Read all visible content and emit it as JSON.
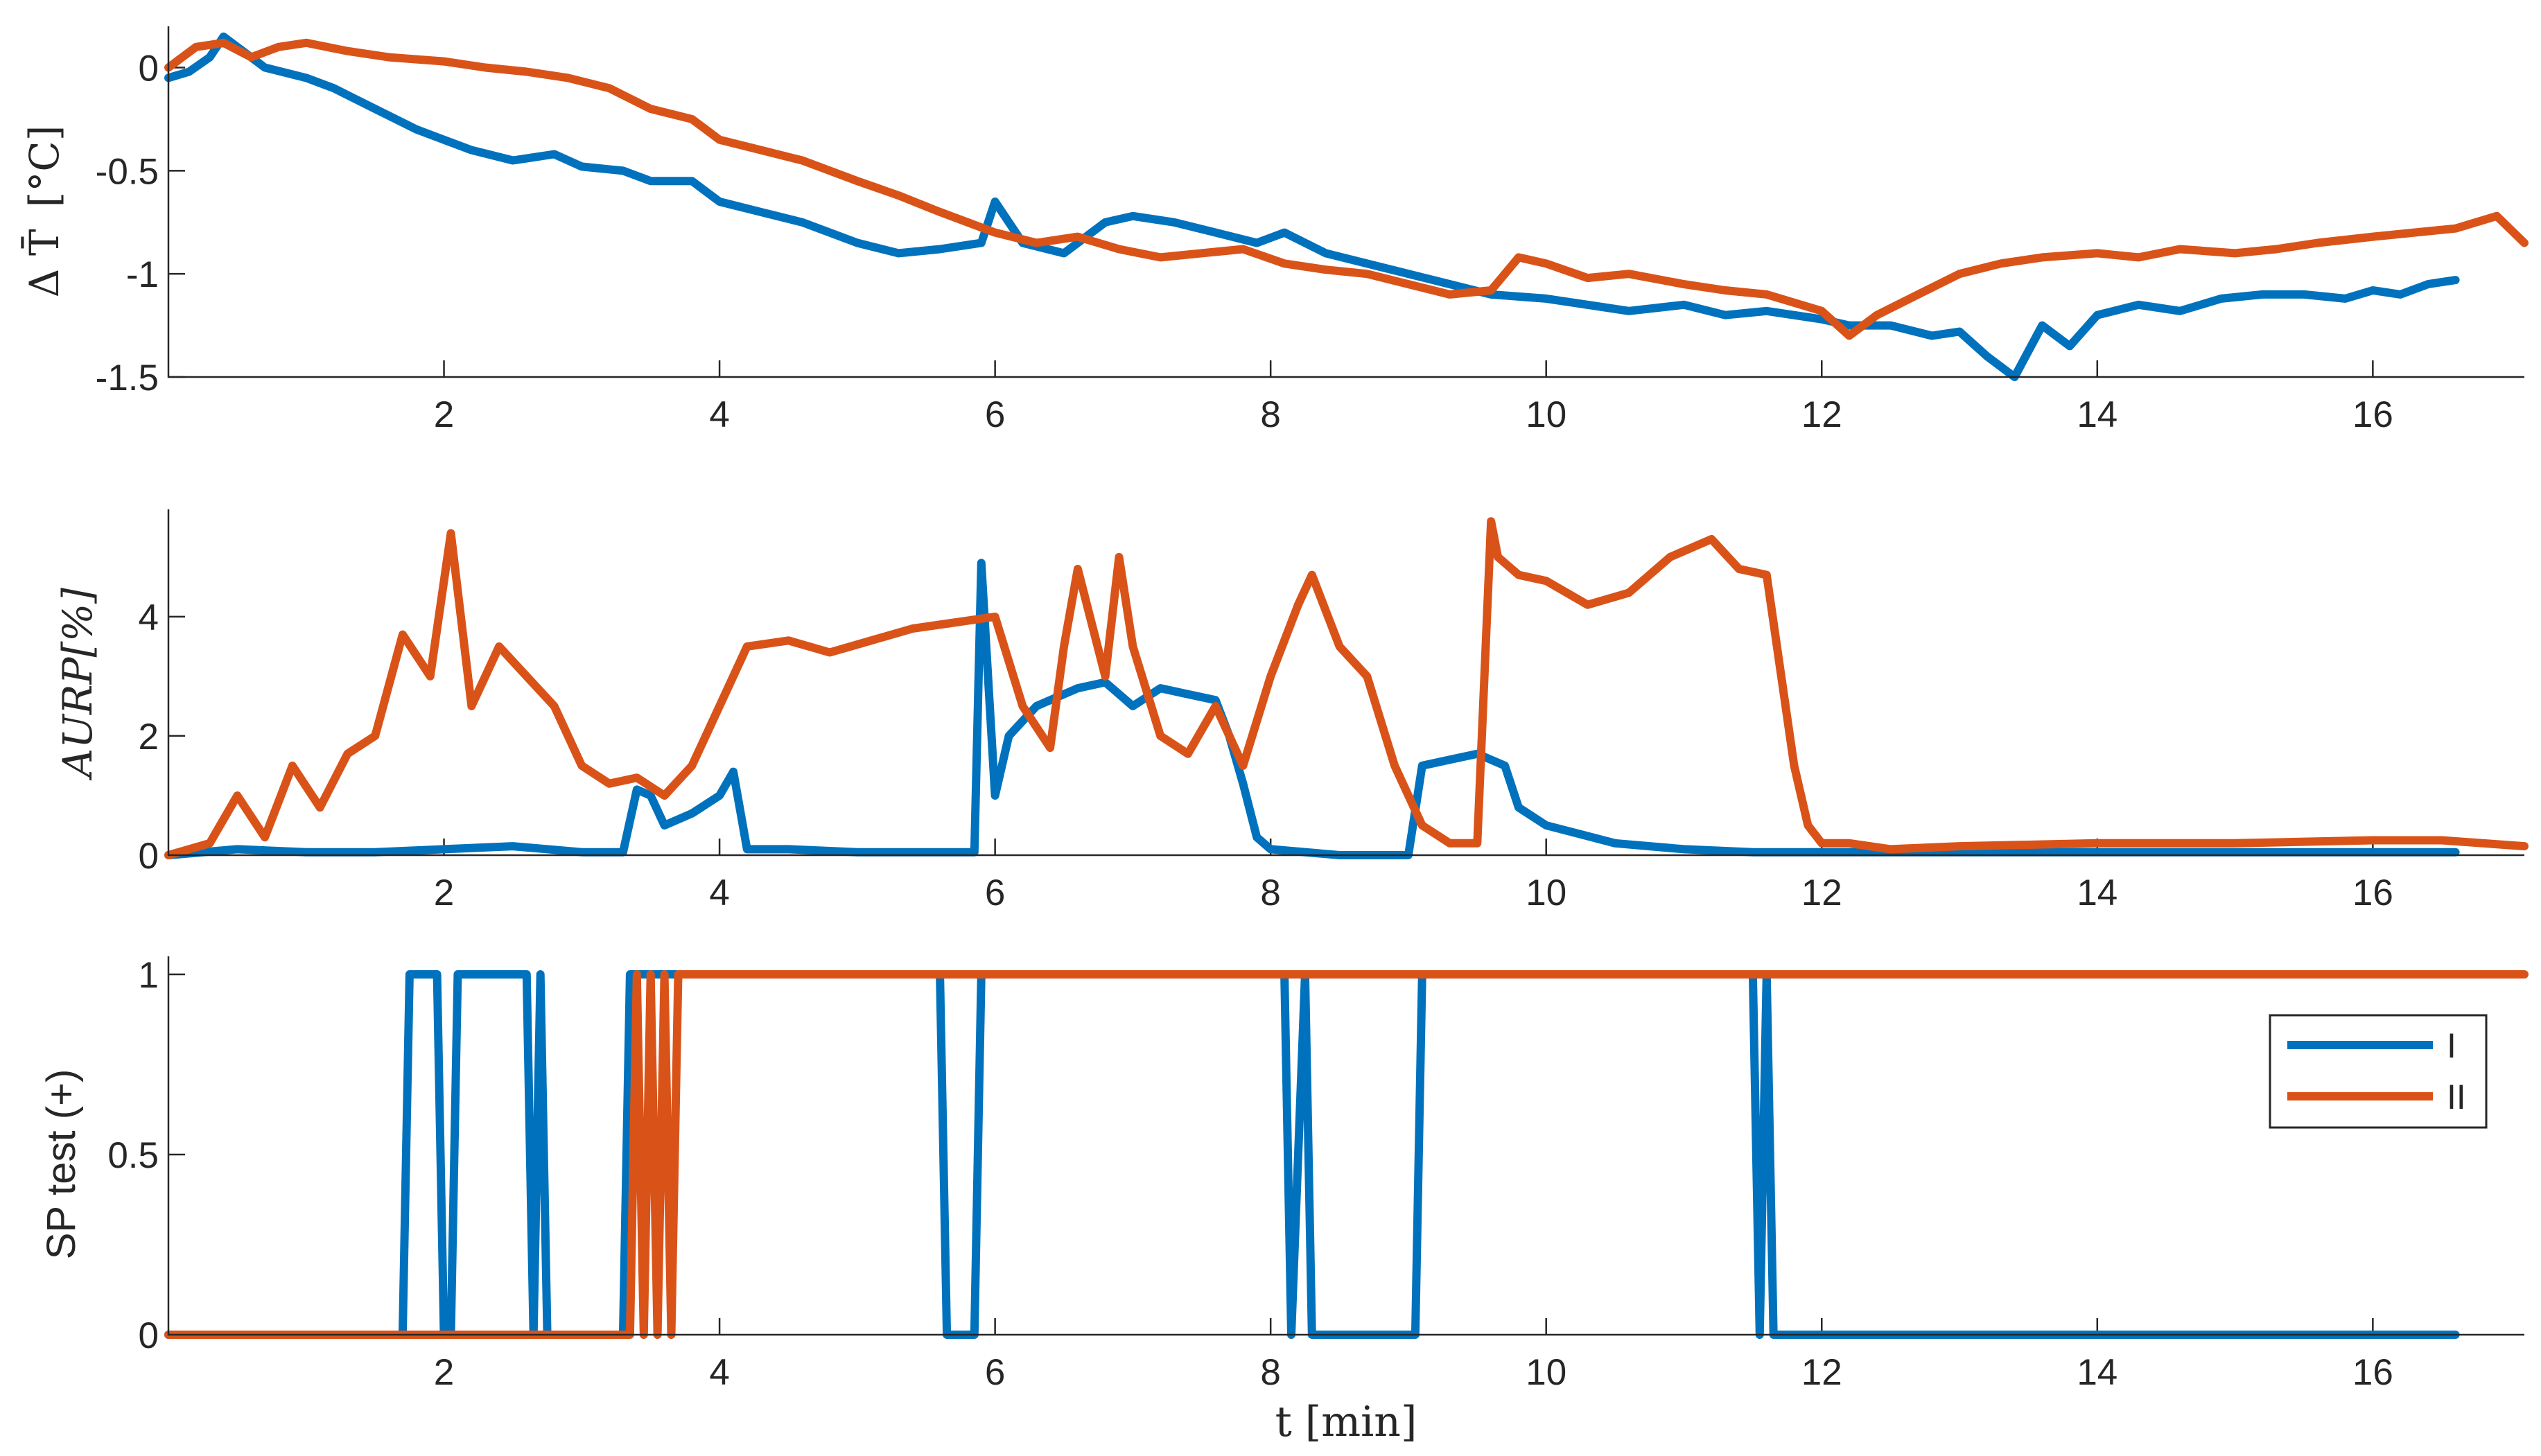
{
  "figure": {
    "xlabel": "t [min]",
    "colors": {
      "series_I": "#0072BD",
      "series_II": "#D95319",
      "axis": "#262626"
    }
  },
  "chart_data": [
    {
      "type": "line",
      "title": "",
      "xlabel": "",
      "ylabel": "Δ T̄ [°C]",
      "ylabel_text": "[°C]",
      "ylabel_symbol": "Δ T̄",
      "xlim": [
        0,
        17.1
      ],
      "ylim": [
        -1.5,
        0.2
      ],
      "xticks": [
        2,
        4,
        6,
        8,
        10,
        12,
        14,
        16
      ],
      "xtick_labels": [
        "2",
        "4",
        "6",
        "8",
        "10",
        "12",
        "14",
        "16"
      ],
      "yticks": [
        -1.5,
        -1,
        -0.5,
        0
      ],
      "ytick_labels": [
        "-1.5",
        "-1",
        "-0.5",
        "0"
      ],
      "series": [
        {
          "name": "I",
          "x": [
            0,
            0.15,
            0.3,
            0.4,
            0.5,
            0.7,
            1.0,
            1.2,
            1.5,
            1.8,
            2.0,
            2.2,
            2.5,
            2.8,
            3.0,
            3.3,
            3.5,
            3.8,
            4.0,
            4.3,
            4.6,
            5.0,
            5.3,
            5.6,
            5.9,
            6.0,
            6.2,
            6.5,
            6.8,
            7.0,
            7.3,
            7.6,
            7.9,
            8.1,
            8.4,
            8.7,
            9.0,
            9.3,
            9.6,
            10.0,
            10.3,
            10.6,
            11.0,
            11.3,
            11.6,
            12.0,
            12.2,
            12.5,
            12.8,
            13.0,
            13.2,
            13.4,
            13.6,
            13.8,
            14.0,
            14.3,
            14.6,
            14.9,
            15.2,
            15.5,
            15.8,
            16.0,
            16.2,
            16.4,
            16.6
          ],
          "values": [
            -0.05,
            -0.02,
            0.05,
            0.15,
            0.1,
            0.0,
            -0.05,
            -0.1,
            -0.2,
            -0.3,
            -0.35,
            -0.4,
            -0.45,
            -0.42,
            -0.48,
            -0.5,
            -0.55,
            -0.55,
            -0.65,
            -0.7,
            -0.75,
            -0.85,
            -0.9,
            -0.88,
            -0.85,
            -0.65,
            -0.85,
            -0.9,
            -0.75,
            -0.72,
            -0.75,
            -0.8,
            -0.85,
            -0.8,
            -0.9,
            -0.95,
            -1.0,
            -1.05,
            -1.1,
            -1.12,
            -1.15,
            -1.18,
            -1.15,
            -1.2,
            -1.18,
            -1.22,
            -1.25,
            -1.25,
            -1.3,
            -1.28,
            -1.4,
            -1.5,
            -1.25,
            -1.35,
            -1.2,
            -1.15,
            -1.18,
            -1.12,
            -1.1,
            -1.1,
            -1.12,
            -1.08,
            -1.1,
            -1.05,
            -1.03
          ]
        },
        {
          "name": "II",
          "x": [
            0,
            0.2,
            0.4,
            0.6,
            0.8,
            1.0,
            1.3,
            1.6,
            2.0,
            2.3,
            2.6,
            2.9,
            3.2,
            3.5,
            3.8,
            4.0,
            4.3,
            4.6,
            5.0,
            5.3,
            5.6,
            6.0,
            6.3,
            6.6,
            6.9,
            7.2,
            7.5,
            7.8,
            8.1,
            8.4,
            8.7,
            9.0,
            9.3,
            9.6,
            9.8,
            10.0,
            10.3,
            10.6,
            11.0,
            11.3,
            11.6,
            12.0,
            12.2,
            12.4,
            12.7,
            13.0,
            13.3,
            13.6,
            14.0,
            14.3,
            14.6,
            15.0,
            15.3,
            15.6,
            16.0,
            16.3,
            16.6,
            16.9,
            17.1
          ],
          "values": [
            0.0,
            0.1,
            0.12,
            0.05,
            0.1,
            0.12,
            0.08,
            0.05,
            0.03,
            0.0,
            -0.02,
            -0.05,
            -0.1,
            -0.2,
            -0.25,
            -0.35,
            -0.4,
            -0.45,
            -0.55,
            -0.62,
            -0.7,
            -0.8,
            -0.85,
            -0.82,
            -0.88,
            -0.92,
            -0.9,
            -0.88,
            -0.95,
            -0.98,
            -1.0,
            -1.05,
            -1.1,
            -1.08,
            -0.92,
            -0.95,
            -1.02,
            -1.0,
            -1.05,
            -1.08,
            -1.1,
            -1.18,
            -1.3,
            -1.2,
            -1.1,
            -1.0,
            -0.95,
            -0.92,
            -0.9,
            -0.92,
            -0.88,
            -0.9,
            -0.88,
            -0.85,
            -0.82,
            -0.8,
            -0.78,
            -0.72,
            -0.85
          ]
        }
      ]
    },
    {
      "type": "line",
      "title": "",
      "xlabel": "",
      "ylabel": "AURP[%]",
      "ylabel_text": "AURP[%]",
      "xlim": [
        0,
        17.1
      ],
      "ylim": [
        0,
        5.8
      ],
      "xticks": [
        2,
        4,
        6,
        8,
        10,
        12,
        14,
        16
      ],
      "xtick_labels": [
        "2",
        "4",
        "6",
        "8",
        "10",
        "12",
        "14",
        "16"
      ],
      "yticks": [
        0,
        2,
        4
      ],
      "ytick_labels": [
        "0",
        "2",
        "4"
      ],
      "series": [
        {
          "name": "I",
          "x": [
            0,
            0.5,
            1.0,
            1.5,
            2.0,
            2.5,
            3.0,
            3.3,
            3.4,
            3.5,
            3.6,
            3.8,
            4.0,
            4.1,
            4.2,
            4.5,
            5.0,
            5.5,
            5.85,
            5.9,
            6.0,
            6.1,
            6.3,
            6.6,
            6.8,
            7.0,
            7.2,
            7.4,
            7.6,
            7.7,
            7.8,
            7.9,
            8.0,
            8.5,
            9.0,
            9.1,
            9.3,
            9.5,
            9.7,
            9.8,
            10.0,
            10.5,
            11.0,
            11.5,
            12.0,
            13.0,
            14.0,
            15.0,
            16.0,
            16.6
          ],
          "values": [
            0.0,
            0.1,
            0.05,
            0.05,
            0.1,
            0.15,
            0.05,
            0.05,
            1.1,
            1.0,
            0.5,
            0.7,
            1.0,
            1.4,
            0.1,
            0.1,
            0.05,
            0.05,
            0.05,
            4.9,
            1.0,
            2.0,
            2.5,
            2.8,
            2.9,
            2.5,
            2.8,
            2.7,
            2.6,
            2.0,
            1.2,
            0.3,
            0.1,
            0.0,
            0.0,
            1.5,
            1.6,
            1.7,
            1.5,
            0.8,
            0.5,
            0.2,
            0.1,
            0.05,
            0.05,
            0.05,
            0.05,
            0.05,
            0.05,
            0.05
          ]
        },
        {
          "name": "II",
          "x": [
            0,
            0.3,
            0.5,
            0.7,
            0.9,
            1.1,
            1.3,
            1.5,
            1.7,
            1.9,
            2.05,
            2.2,
            2.4,
            2.6,
            2.8,
            3.0,
            3.2,
            3.4,
            3.6,
            3.8,
            4.0,
            4.2,
            4.5,
            4.8,
            5.1,
            5.4,
            5.7,
            6.0,
            6.2,
            6.4,
            6.5,
            6.6,
            6.8,
            6.9,
            7.0,
            7.2,
            7.4,
            7.6,
            7.8,
            8.0,
            8.2,
            8.3,
            8.5,
            8.7,
            8.9,
            9.1,
            9.3,
            9.5,
            9.6,
            9.65,
            9.8,
            10.0,
            10.3,
            10.6,
            10.9,
            11.2,
            11.4,
            11.6,
            11.8,
            11.9,
            12.0,
            12.2,
            12.5,
            13.0,
            14.0,
            15.0,
            16.0,
            16.5,
            17.1
          ],
          "values": [
            0.0,
            0.2,
            1.0,
            0.3,
            1.5,
            0.8,
            1.7,
            2.0,
            3.7,
            3.0,
            5.4,
            2.5,
            3.5,
            3.0,
            2.5,
            1.5,
            1.2,
            1.3,
            1.0,
            1.5,
            2.5,
            3.5,
            3.6,
            3.4,
            3.6,
            3.8,
            3.9,
            4.0,
            2.5,
            1.8,
            3.5,
            4.8,
            3.0,
            5.0,
            3.5,
            2.0,
            1.7,
            2.5,
            1.5,
            3.0,
            4.2,
            4.7,
            3.5,
            3.0,
            1.5,
            0.5,
            0.2,
            0.2,
            5.6,
            5.0,
            4.7,
            4.6,
            4.2,
            4.4,
            5.0,
            5.3,
            4.8,
            4.7,
            1.5,
            0.5,
            0.2,
            0.2,
            0.1,
            0.15,
            0.2,
            0.2,
            0.25,
            0.25,
            0.15
          ]
        }
      ]
    },
    {
      "type": "line",
      "title": "",
      "xlabel": "t [min]",
      "ylabel": "SP test (+)",
      "ylabel_text": "SP test (+)",
      "xlim": [
        0,
        17.1
      ],
      "ylim": [
        0,
        1.05
      ],
      "xticks": [
        2,
        4,
        6,
        8,
        10,
        12,
        14,
        16
      ],
      "xtick_labels": [
        "2",
        "4",
        "6",
        "8",
        "10",
        "12",
        "14",
        "16"
      ],
      "yticks": [
        0,
        0.5,
        1
      ],
      "ytick_labels": [
        "0",
        "0.5",
        "1"
      ],
      "legend": {
        "location": "top-right",
        "entries": [
          "I",
          "II"
        ]
      },
      "series": [
        {
          "name": "I",
          "x": [
            0,
            1.7,
            1.75,
            1.95,
            2.0,
            2.05,
            2.1,
            2.6,
            2.65,
            2.7,
            2.75,
            3.3,
            3.35,
            3.7,
            5.6,
            5.65,
            5.85,
            5.9,
            8.1,
            8.15,
            8.25,
            8.3,
            9.05,
            9.1,
            11.5,
            11.55,
            11.6,
            11.65,
            12.0,
            16.6
          ],
          "values": [
            0,
            0,
            1,
            1,
            0,
            0,
            1,
            1,
            0,
            1,
            0,
            0,
            1,
            1,
            1,
            0,
            0,
            1,
            1,
            0,
            1,
            0,
            0,
            1,
            1,
            0,
            1,
            0,
            0,
            0
          ]
        },
        {
          "name": "II",
          "x": [
            0,
            3.35,
            3.4,
            3.45,
            3.5,
            3.55,
            3.6,
            3.65,
            3.7,
            17.1
          ],
          "values": [
            0,
            0,
            1,
            0,
            1,
            0,
            1,
            0,
            1,
            1
          ]
        }
      ]
    }
  ]
}
